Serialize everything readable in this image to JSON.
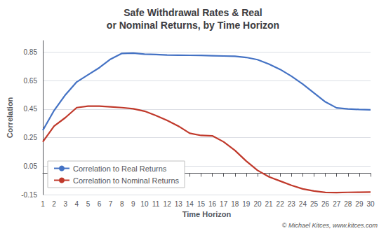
{
  "chart_data": {
    "type": "line",
    "title": "Safe Withdrawal Rates & Real\nor Nominal Returns, by Time Horizon",
    "x_label": "Time Horizon",
    "y_label": "Correlation",
    "x": [
      1,
      2,
      3,
      4,
      5,
      6,
      7,
      8,
      9,
      10,
      11,
      12,
      13,
      14,
      15,
      16,
      17,
      18,
      19,
      20,
      21,
      22,
      23,
      24,
      25,
      26,
      27,
      28,
      29,
      30
    ],
    "series": [
      {
        "name": "Correlation to Real Returns",
        "color": "#4472C4",
        "values": [
          0.3,
          0.44,
          0.55,
          0.64,
          0.69,
          0.74,
          0.8,
          0.84,
          0.842,
          0.835,
          0.832,
          0.829,
          0.828,
          0.827,
          0.826,
          0.824,
          0.822,
          0.82,
          0.812,
          0.796,
          0.766,
          0.728,
          0.68,
          0.625,
          0.562,
          0.5,
          0.458,
          0.451,
          0.447,
          0.445
        ]
      },
      {
        "name": "Correlation to Nominal Returns",
        "color": "#C0392B",
        "values": [
          0.22,
          0.33,
          0.39,
          0.46,
          0.47,
          0.47,
          0.465,
          0.46,
          0.452,
          0.435,
          0.405,
          0.37,
          0.33,
          0.28,
          0.265,
          0.262,
          0.22,
          0.16,
          0.085,
          0.02,
          -0.025,
          -0.055,
          -0.085,
          -0.11,
          -0.125,
          -0.135,
          -0.136,
          -0.134,
          -0.133,
          -0.132
        ]
      }
    ],
    "xlim": [
      1,
      30
    ],
    "xticks": [
      1,
      2,
      3,
      4,
      5,
      6,
      7,
      8,
      9,
      10,
      11,
      12,
      13,
      14,
      15,
      16,
      17,
      18,
      19,
      20,
      21,
      22,
      23,
      24,
      25,
      26,
      27,
      28,
      29,
      30
    ],
    "ylim": [
      -0.15,
      0.93
    ],
    "yticks": [
      -0.15,
      0.05,
      0.25,
      0.45,
      0.65,
      0.85
    ],
    "grid": true,
    "legend": "lower left",
    "annotations": [
      "© Michael Kitces, www.kitces.com"
    ]
  }
}
